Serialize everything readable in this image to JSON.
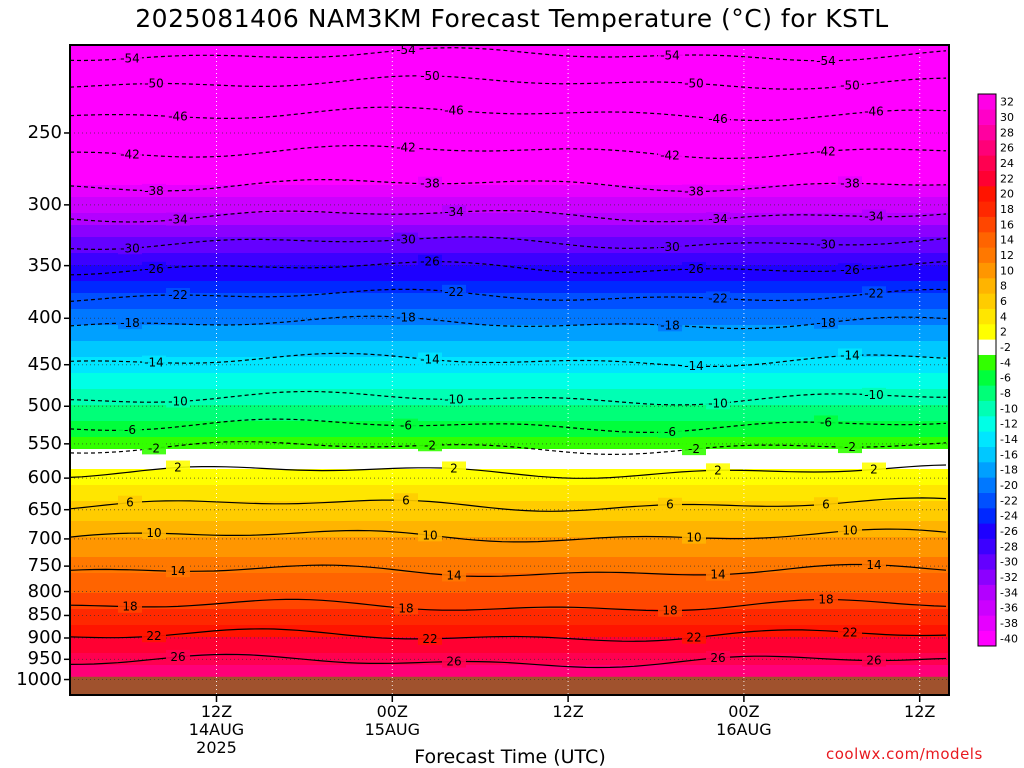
{
  "title": "2025081406 NAM3KM Forecast Temperature (°C) for KSTL",
  "xlabel": "Forecast Time (UTC)",
  "credit": "coolwx.com/models",
  "chart_data": {
    "type": "heatmap",
    "variable": "Temperature (°C)",
    "y_axis": {
      "label": "",
      "scale": "log",
      "inverted": true,
      "range": [
        200,
        1040
      ],
      "ticks": [
        250,
        300,
        350,
        400,
        450,
        500,
        550,
        600,
        650,
        700,
        750,
        800,
        850,
        900,
        950,
        1000
      ]
    },
    "x_axis": {
      "range_hours": [
        -10,
        50
      ],
      "ticks": [
        {
          "hour": 0,
          "lines": [
            "12Z",
            "14AUG",
            "2025"
          ]
        },
        {
          "hour": 12,
          "lines": [
            "00Z",
            "15AUG"
          ]
        },
        {
          "hour": 24,
          "lines": [
            "12Z"
          ]
        },
        {
          "hour": 36,
          "lines": [
            "00Z",
            "16AUG"
          ]
        },
        {
          "hour": 48,
          "lines": [
            "12Z"
          ]
        }
      ]
    },
    "ground_level_hpa": 993,
    "profile": [
      {
        "p": 200,
        "t": -57
      },
      {
        "p": 215,
        "t": -54
      },
      {
        "p": 230,
        "t": -49
      },
      {
        "p": 250,
        "t": -45
      },
      {
        "p": 275,
        "t": -40
      },
      {
        "p": 300,
        "t": -35
      },
      {
        "p": 325,
        "t": -30
      },
      {
        "p": 350,
        "t": -26
      },
      {
        "p": 375,
        "t": -22
      },
      {
        "p": 400,
        "t": -19
      },
      {
        "p": 450,
        "t": -13
      },
      {
        "p": 500,
        "t": -8
      },
      {
        "p": 550,
        "t": -3
      },
      {
        "p": 575,
        "t": 1
      },
      {
        "p": 600,
        "t": 3
      },
      {
        "p": 650,
        "t": 7
      },
      {
        "p": 700,
        "t": 10
      },
      {
        "p": 750,
        "t": 13
      },
      {
        "p": 800,
        "t": 16
      },
      {
        "p": 850,
        "t": 19
      },
      {
        "p": 900,
        "t": 22
      },
      {
        "p": 950,
        "t": 25
      },
      {
        "p": 1000,
        "t": 28
      }
    ],
    "colorbar": {
      "levels": [
        -40,
        -38,
        -36,
        -34,
        -32,
        -30,
        -28,
        -26,
        -24,
        -22,
        -20,
        -18,
        -16,
        -14,
        -12,
        -10,
        -8,
        -6,
        -4,
        -2,
        2,
        4,
        6,
        8,
        10,
        12,
        14,
        16,
        18,
        20,
        22,
        24,
        26,
        28,
        30,
        32
      ],
      "colors": [
        "#ff00ff",
        "#e600ff",
        "#cc00ff",
        "#b300ff",
        "#8c00ff",
        "#6400ff",
        "#3c00ff",
        "#1e00ff",
        "#0028ff",
        "#0050ff",
        "#0078ff",
        "#00a0ff",
        "#00c8ff",
        "#00e6ff",
        "#00ffe6",
        "#00ffb4",
        "#00ff78",
        "#00ff3c",
        "#32ff00",
        "#ffffff",
        "#ffff00",
        "#ffe600",
        "#ffcc00",
        "#ffb400",
        "#ff9600",
        "#ff7800",
        "#ff6400",
        "#ff4600",
        "#ff2800",
        "#ff1400",
        "#ff0032",
        "#ff0050",
        "#ff0078",
        "#ff00a0",
        "#ff00c8",
        "#ff00e6"
      ]
    },
    "contours": [
      {
        "value": -54,
        "p": 205
      },
      {
        "value": -50,
        "p": 220
      },
      {
        "value": -46,
        "p": 238
      },
      {
        "value": -42,
        "p": 262
      },
      {
        "value": -38,
        "p": 285
      },
      {
        "value": -34,
        "p": 308
      },
      {
        "value": -30,
        "p": 330
      },
      {
        "value": -26,
        "p": 352
      },
      {
        "value": -22,
        "p": 378
      },
      {
        "value": -18,
        "p": 405
      },
      {
        "value": -14,
        "p": 445
      },
      {
        "value": -10,
        "p": 490
      },
      {
        "value": -6,
        "p": 525
      },
      {
        "value": -2,
        "p": 555
      },
      {
        "value": 2,
        "p": 590
      },
      {
        "value": 6,
        "p": 642
      },
      {
        "value": 10,
        "p": 695
      },
      {
        "value": 14,
        "p": 760
      },
      {
        "value": 18,
        "p": 830
      },
      {
        "value": 22,
        "p": 895
      },
      {
        "value": 26,
        "p": 955
      }
    ]
  }
}
